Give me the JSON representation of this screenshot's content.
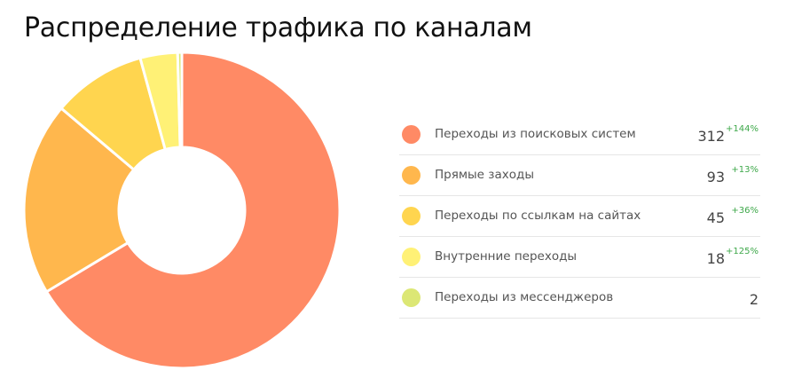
{
  "title": "Распределение трафика по каналам",
  "chart_data": {
    "type": "pie",
    "title": "Распределение трафика по каналам",
    "donut": true,
    "legend_position": "right",
    "series": [
      {
        "name": "Переходы из поисковых систем",
        "value": 312,
        "delta": "+144%",
        "color": "#FF8A65"
      },
      {
        "name": "Прямые заходы",
        "value": 93,
        "delta": "+13%",
        "color": "#FFB74D"
      },
      {
        "name": "Переходы по ссылкам на сайтах",
        "value": 45,
        "delta": "+36%",
        "color": "#FFD54F"
      },
      {
        "name": "Внутренние переходы",
        "value": 18,
        "delta": "+125%",
        "color": "#FFF176"
      },
      {
        "name": "Переходы из мессенджеров",
        "value": 2,
        "delta": "",
        "color": "#DCE775"
      }
    ]
  }
}
